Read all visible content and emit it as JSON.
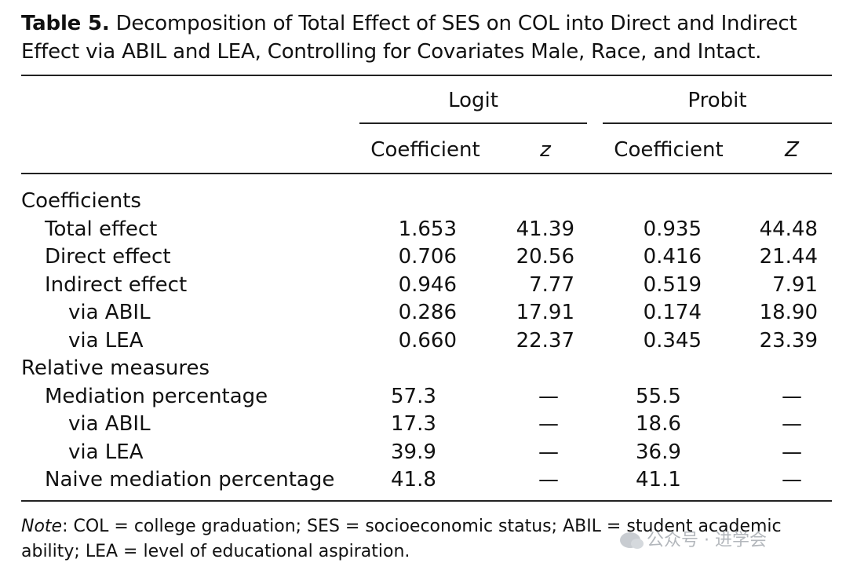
{
  "caption": {
    "label": "Table 5.",
    "text": "Decomposition of Total Effect of SES on COL into Direct and Indirect Effect via ABIL and LEA, Controlling for Covariates Male, Race, and Intact."
  },
  "header": {
    "groups": [
      "Logit",
      "Probit"
    ],
    "columns": [
      "Coefficient",
      "z",
      "Coefficient",
      "Z"
    ]
  },
  "rows": [
    {
      "label": "Coefficients",
      "level": 0,
      "cells": [
        "",
        "",
        "",
        ""
      ]
    },
    {
      "label": "Total effect",
      "level": 1,
      "cells": [
        "1.653",
        "41.39",
        "0.935",
        "44.48"
      ]
    },
    {
      "label": "Direct effect",
      "level": 1,
      "cells": [
        "0.706",
        "20.56",
        "0.416",
        "21.44"
      ]
    },
    {
      "label": "Indirect effect",
      "level": 1,
      "cells": [
        "0.946",
        "7.77",
        "0.519",
        "7.91"
      ]
    },
    {
      "label": "via ABIL",
      "level": 2,
      "cells": [
        "0.286",
        "17.91",
        "0.174",
        "18.90"
      ]
    },
    {
      "label": "via LEA",
      "level": 2,
      "cells": [
        "0.660",
        "22.37",
        "0.345",
        "23.39"
      ]
    },
    {
      "label": "Relative measures",
      "level": 0,
      "cells": [
        "",
        "",
        "",
        ""
      ]
    },
    {
      "label": "Mediation percentage",
      "level": 1,
      "cells": [
        "57.3",
        "—",
        "55.5",
        "—"
      ]
    },
    {
      "label": "via ABIL",
      "level": 2,
      "cells": [
        "17.3",
        "—",
        "18.6",
        "—"
      ]
    },
    {
      "label": "via LEA",
      "level": 2,
      "cells": [
        "39.9",
        "—",
        "36.9",
        "—"
      ]
    },
    {
      "label": "Naive mediation percentage",
      "level": 1,
      "cells": [
        "41.8",
        "—",
        "41.1",
        "—"
      ]
    }
  ],
  "note": {
    "label": "Note",
    "text": ": COL = college graduation; SES = socioeconomic status; ABIL = student academic ability; LEA = level of educational aspiration."
  },
  "watermark": "公众号 · 进学会"
}
